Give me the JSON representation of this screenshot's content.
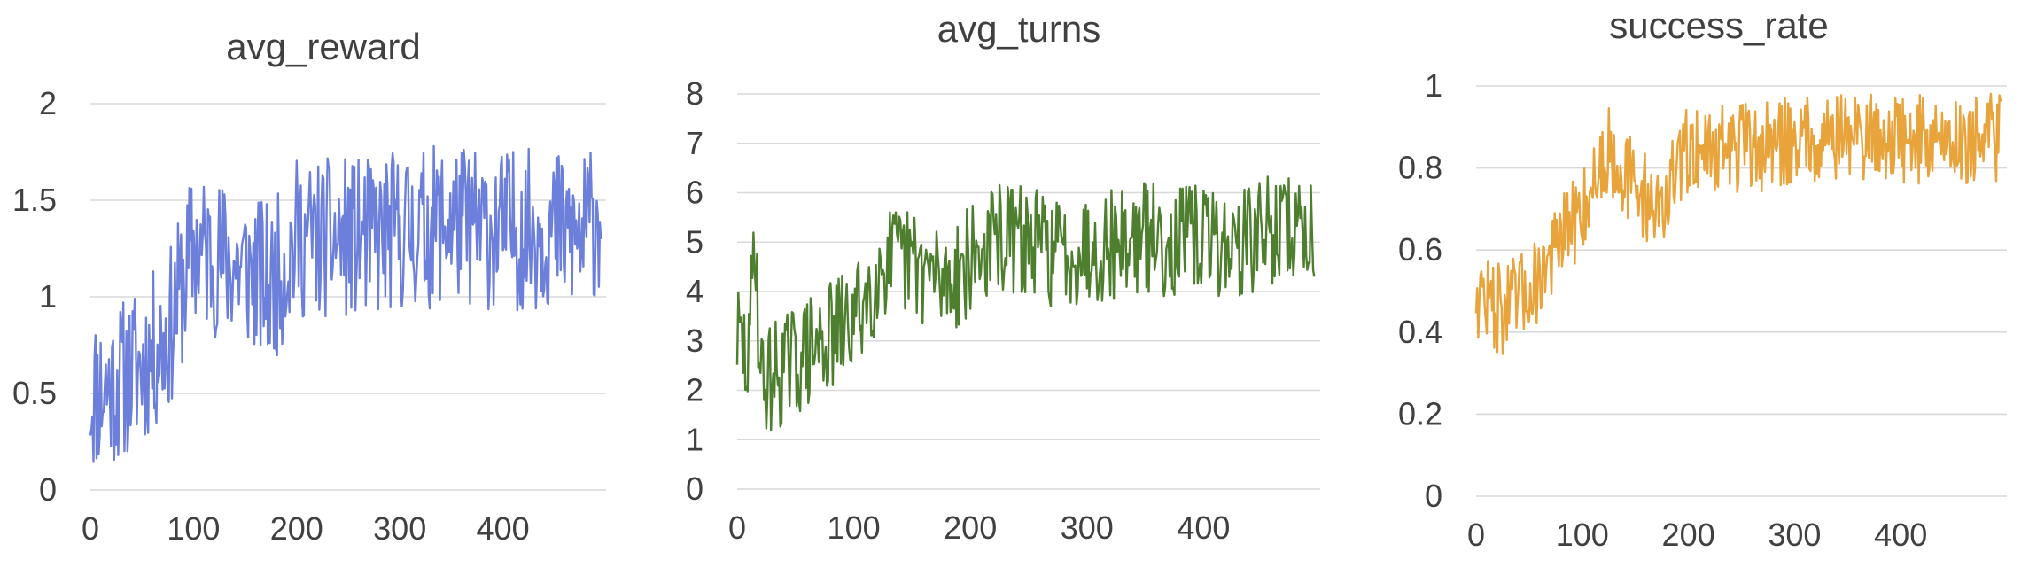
{
  "chart_data": [
    {
      "type": "line",
      "title": "avg_reward",
      "xlabel": "",
      "ylabel": "",
      "xlim": [
        0,
        500
      ],
      "ylim": [
        0,
        2
      ],
      "x_ticks": [
        0,
        100,
        200,
        300,
        400
      ],
      "y_ticks": [
        "0",
        "0.5",
        "1",
        "1.5",
        "2"
      ],
      "grid": true,
      "color": "#6b7fdb",
      "x": [
        0,
        25,
        50,
        75,
        100,
        125,
        150,
        175,
        200,
        225,
        250,
        275,
        300,
        325,
        350,
        375,
        400,
        425,
        450,
        475,
        495
      ],
      "values": [
        0.5,
        0.55,
        0.65,
        0.8,
        1.25,
        1.2,
        1.15,
        1.05,
        1.3,
        1.3,
        1.3,
        1.3,
        1.35,
        1.35,
        1.4,
        1.35,
        1.35,
        1.35,
        1.35,
        1.3,
        1.45
      ]
    },
    {
      "type": "line",
      "title": "avg_turns",
      "xlabel": "",
      "ylabel": "",
      "xlim": [
        0,
        500
      ],
      "ylim": [
        0,
        8
      ],
      "x_ticks": [
        0,
        100,
        200,
        300,
        400
      ],
      "y_ticks": [
        "0",
        "1",
        "2",
        "3",
        "4",
        "5",
        "6",
        "7",
        "8"
      ],
      "grid": true,
      "color": "#4e7f2f",
      "x": [
        0,
        10,
        15,
        20,
        25,
        50,
        75,
        100,
        125,
        150,
        175,
        200,
        225,
        250,
        275,
        300,
        325,
        350,
        375,
        400,
        425,
        450,
        475,
        495
      ],
      "values": [
        3.1,
        2.5,
        5.5,
        2.2,
        2.2,
        2.6,
        3.0,
        3.4,
        4.6,
        4.6,
        4.2,
        4.6,
        5.1,
        5.0,
        4.8,
        4.9,
        5.0,
        5.1,
        5.0,
        5.1,
        4.9,
        5.2,
        5.3,
        5.2
      ]
    },
    {
      "type": "line",
      "title": "success_rate",
      "xlabel": "",
      "ylabel": "",
      "xlim": [
        0,
        500
      ],
      "ylim": [
        0,
        1
      ],
      "x_ticks": [
        0,
        100,
        200,
        300,
        400
      ],
      "y_ticks": [
        "0",
        "0.2",
        "0.4",
        "0.6",
        "0.8",
        "1"
      ],
      "grid": true,
      "color": "#e8a33b",
      "x": [
        0,
        25,
        50,
        75,
        100,
        125,
        150,
        175,
        200,
        225,
        250,
        275,
        300,
        325,
        350,
        375,
        400,
        425,
        450,
        475,
        495
      ],
      "values": [
        0.5,
        0.45,
        0.5,
        0.6,
        0.7,
        0.85,
        0.75,
        0.7,
        0.85,
        0.85,
        0.85,
        0.85,
        0.87,
        0.88,
        0.88,
        0.88,
        0.87,
        0.87,
        0.87,
        0.87,
        0.88
      ]
    }
  ]
}
